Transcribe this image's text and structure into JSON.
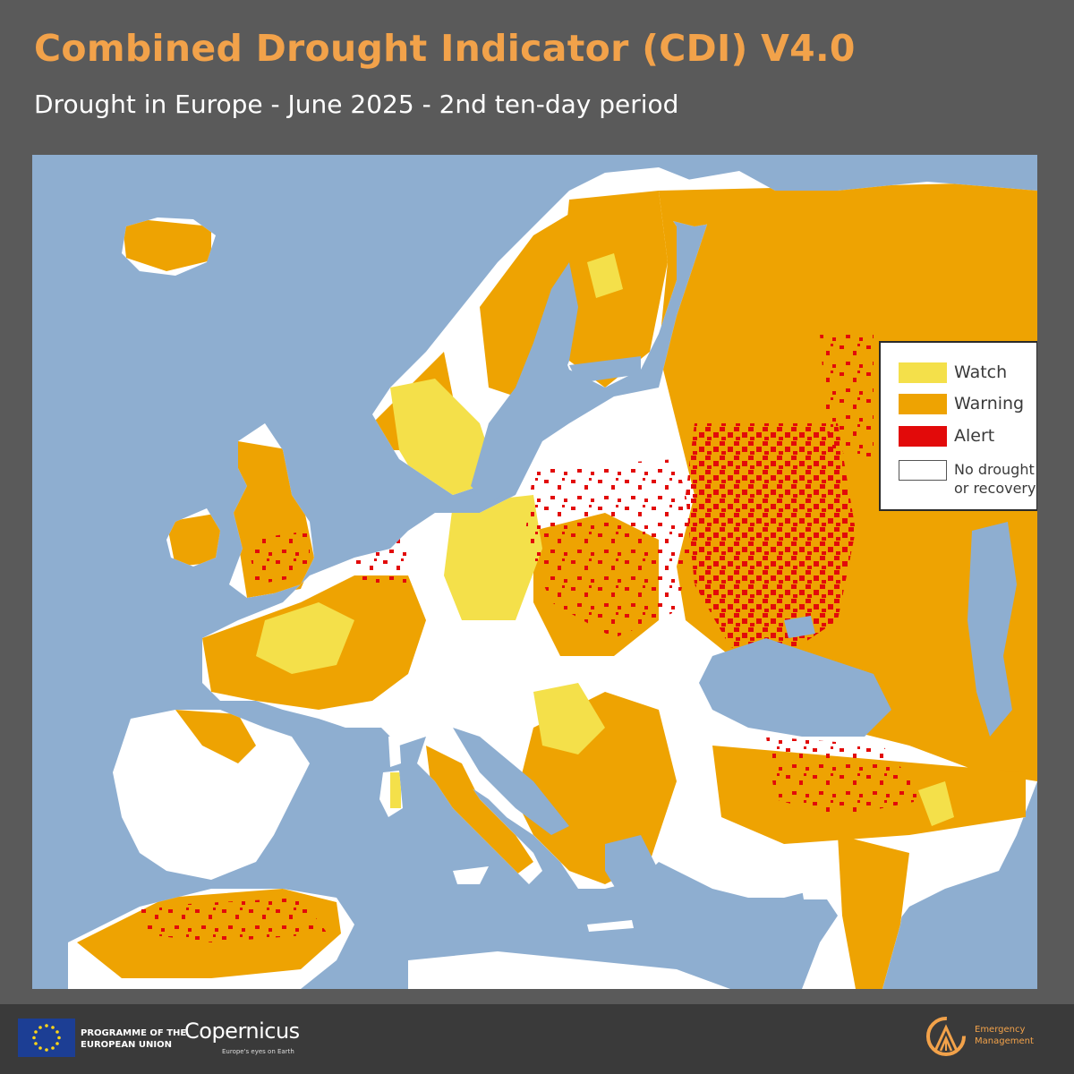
{
  "header": {
    "title": "Combined Drought Indicator (CDI) V4.0",
    "subtitle": "Drought in Europe - June 2025 - 2nd ten-day period"
  },
  "legend": {
    "items": [
      {
        "label": "Watch",
        "color": "#f4e04a"
      },
      {
        "label": "Warning",
        "color": "#eea302"
      },
      {
        "label": "Alert",
        "color": "#e20a0a"
      },
      {
        "label_line1": "No drought",
        "label_line2": "or recovery",
        "color": "#ffffff"
      }
    ]
  },
  "map": {
    "sea_color": "#8eaed0",
    "land_color": "#ffffff"
  },
  "footer": {
    "programme_line1": "PROGRAMME OF THE",
    "programme_line2": "EUROPEAN UNION",
    "copernicus": "Copernicus",
    "copernicus_tagline": "Europe's eyes on Earth",
    "em_line1": "Emergency",
    "em_line2": "Management"
  }
}
